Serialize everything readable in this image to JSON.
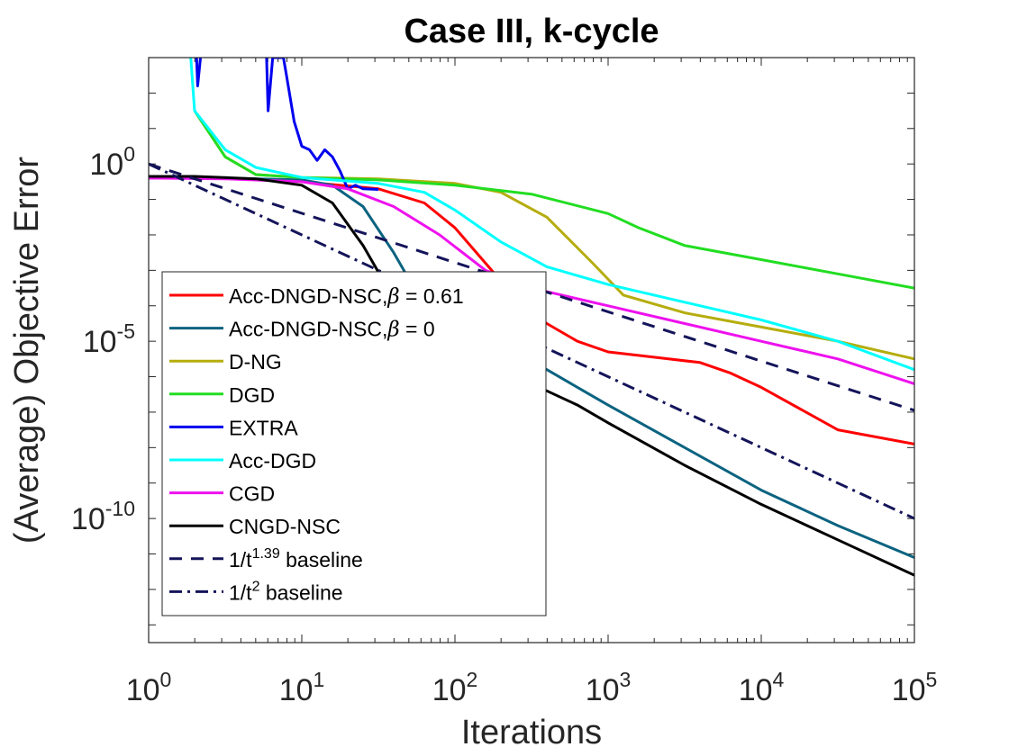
{
  "chart_data": {
    "type": "line",
    "title": "Case III, k-cycle",
    "xlabel": "Iterations",
    "ylabel": "(Average) Objective Error",
    "xscale": "log",
    "yscale": "log",
    "xlim_exp": [
      0,
      5
    ],
    "ylim_exp": [
      -13.5,
      3.0
    ],
    "x_ticks": [
      {
        "base": "10",
        "exp": "0",
        "value_exp": 0
      },
      {
        "base": "10",
        "exp": "1",
        "value_exp": 1
      },
      {
        "base": "10",
        "exp": "2",
        "value_exp": 2
      },
      {
        "base": "10",
        "exp": "3",
        "value_exp": 3
      },
      {
        "base": "10",
        "exp": "4",
        "value_exp": 4
      },
      {
        "base": "10",
        "exp": "5",
        "value_exp": 5
      }
    ],
    "y_ticks": [
      {
        "base": "10",
        "exp": "0",
        "value_exp": 0
      },
      {
        "base": "10",
        "exp": "-5",
        "value_exp": -5
      },
      {
        "base": "10",
        "exp": "-10",
        "value_exp": -10
      }
    ],
    "legend_position": "bottom-left",
    "note": "points are [log10(iterations), log10(error)]",
    "series": [
      {
        "name": "Acc-DNGD-NSC,β = 0.61",
        "legend": {
          "main": "Acc-DNGD-NSC,",
          "greek": "β",
          "rest": " = 0.61"
        },
        "color": "#ff0000",
        "dash": "solid",
        "points": [
          [
            0,
            -0.4
          ],
          [
            0.5,
            -0.4
          ],
          [
            1,
            -0.5
          ],
          [
            1.5,
            -0.7
          ],
          [
            1.8,
            -1.1
          ],
          [
            2,
            -1.8
          ],
          [
            2.2,
            -2.8
          ],
          [
            2.4,
            -3.8
          ],
          [
            2.6,
            -4.5
          ],
          [
            2.8,
            -5.0
          ],
          [
            3.0,
            -5.3
          ],
          [
            3.3,
            -5.45
          ],
          [
            3.6,
            -5.6
          ],
          [
            3.8,
            -5.9
          ],
          [
            4.0,
            -6.3
          ],
          [
            4.5,
            -7.5
          ],
          [
            5,
            -7.9
          ]
        ]
      },
      {
        "name": "Acc-DNGD-NSC,β = 0",
        "legend": {
          "main": "Acc-DNGD-NSC,",
          "greek": "β",
          "rest": " = 0"
        },
        "color": "#0b6380",
        "dash": "solid",
        "points": [
          [
            0,
            -0.4
          ],
          [
            0.5,
            -0.4
          ],
          [
            1,
            -0.45
          ],
          [
            1.2,
            -0.6
          ],
          [
            1.4,
            -1.2
          ],
          [
            1.6,
            -2.5
          ],
          [
            1.8,
            -4.0
          ],
          [
            2.0,
            -4.8
          ],
          [
            2.2,
            -5.2
          ],
          [
            2.4,
            -5.5
          ],
          [
            2.6,
            -5.8
          ],
          [
            2.8,
            -6.3
          ],
          [
            3.0,
            -6.8
          ],
          [
            3.5,
            -8.0
          ],
          [
            4.0,
            -9.2
          ],
          [
            4.5,
            -10.2
          ],
          [
            5,
            -11.1
          ]
        ]
      },
      {
        "name": "D-NG",
        "legend": {
          "main": "D-NG"
        },
        "color": "#b5ad0e",
        "dash": "solid",
        "points": [
          [
            0.3,
            1.5
          ],
          [
            0.5,
            0.2
          ],
          [
            0.7,
            -0.3
          ],
          [
            1.0,
            -0.38
          ],
          [
            1.5,
            -0.42
          ],
          [
            2.0,
            -0.55
          ],
          [
            2.3,
            -0.8
          ],
          [
            2.6,
            -1.5
          ],
          [
            2.9,
            -2.8
          ],
          [
            3.1,
            -3.7
          ],
          [
            3.5,
            -4.2
          ],
          [
            4.0,
            -4.6
          ],
          [
            4.5,
            -5.0
          ],
          [
            5.0,
            -5.5
          ]
        ]
      },
      {
        "name": "DGD",
        "legend": {
          "main": "DGD"
        },
        "color": "#22dd22",
        "dash": "solid",
        "points": [
          [
            0.3,
            1.5
          ],
          [
            0.5,
            0.2
          ],
          [
            0.7,
            -0.3
          ],
          [
            1.0,
            -0.38
          ],
          [
            1.5,
            -0.45
          ],
          [
            2.0,
            -0.6
          ],
          [
            2.5,
            -0.85
          ],
          [
            3.0,
            -1.4
          ],
          [
            3.2,
            -1.8
          ],
          [
            3.5,
            -2.3
          ],
          [
            4.0,
            -2.7
          ],
          [
            4.5,
            -3.1
          ],
          [
            5.0,
            -3.5
          ]
        ]
      },
      {
        "name": "EXTRA",
        "legend": {
          "main": "EXTRA"
        },
        "color": "#0000ee",
        "dash": "solid",
        "points": [
          [
            0.3,
            4.5
          ],
          [
            0.32,
            2.2
          ],
          [
            0.35,
            3.5
          ],
          [
            0.4,
            4.5
          ],
          [
            0.76,
            4.5
          ],
          [
            0.78,
            1.5
          ],
          [
            0.81,
            3.0
          ],
          [
            0.84,
            3.0
          ],
          [
            0.88,
            3.0
          ],
          [
            0.9,
            2.5
          ],
          [
            0.95,
            1.2
          ],
          [
            1.0,
            0.5
          ],
          [
            1.05,
            0.4
          ],
          [
            1.1,
            0.1
          ],
          [
            1.15,
            0.4
          ],
          [
            1.2,
            0.2
          ],
          [
            1.25,
            -0.2
          ],
          [
            1.3,
            -0.7
          ],
          [
            1.35,
            -0.6
          ],
          [
            1.4,
            -0.7
          ],
          [
            1.5,
            -0.72
          ]
        ]
      },
      {
        "name": "Acc-DGD",
        "legend": {
          "main": "Acc-DGD"
        },
        "color": "#00ffff",
        "dash": "solid",
        "points": [
          [
            0.25,
            4.5
          ],
          [
            0.3,
            1.5
          ],
          [
            0.5,
            0.4
          ],
          [
            0.7,
            -0.1
          ],
          [
            1.0,
            -0.38
          ],
          [
            1.5,
            -0.55
          ],
          [
            1.8,
            -0.8
          ],
          [
            2.0,
            -1.3
          ],
          [
            2.3,
            -2.2
          ],
          [
            2.6,
            -2.9
          ],
          [
            3.0,
            -3.4
          ],
          [
            3.5,
            -3.9
          ],
          [
            4.0,
            -4.4
          ],
          [
            4.5,
            -5.0
          ],
          [
            5.0,
            -5.8
          ]
        ]
      },
      {
        "name": "CGD",
        "legend": {
          "main": "CGD"
        },
        "color": "#ee11ee",
        "dash": "solid",
        "points": [
          [
            0,
            -0.4
          ],
          [
            0.5,
            -0.42
          ],
          [
            1.0,
            -0.5
          ],
          [
            1.3,
            -0.7
          ],
          [
            1.6,
            -1.2
          ],
          [
            1.9,
            -2.0
          ],
          [
            2.2,
            -3.0
          ],
          [
            2.5,
            -3.5
          ],
          [
            3.0,
            -4.0
          ],
          [
            3.5,
            -4.5
          ],
          [
            4.0,
            -5.0
          ],
          [
            4.5,
            -5.5
          ],
          [
            5.0,
            -6.2
          ]
        ]
      },
      {
        "name": "CNGD-NSC",
        "legend": {
          "main": "CNGD-NSC"
        },
        "color": "#000000",
        "dash": "solid",
        "points": [
          [
            0,
            -0.35
          ],
          [
            0.3,
            -0.35
          ],
          [
            0.7,
            -0.42
          ],
          [
            1.0,
            -0.6
          ],
          [
            1.2,
            -1.1
          ],
          [
            1.4,
            -2.3
          ],
          [
            1.6,
            -3.8
          ],
          [
            1.8,
            -5.0
          ],
          [
            2.0,
            -5.5
          ],
          [
            2.2,
            -5.8
          ],
          [
            2.4,
            -6.1
          ],
          [
            2.6,
            -6.4
          ],
          [
            2.8,
            -6.8
          ],
          [
            3.0,
            -7.3
          ],
          [
            3.5,
            -8.5
          ],
          [
            4.0,
            -9.6
          ],
          [
            4.5,
            -10.6
          ],
          [
            5,
            -11.6
          ]
        ]
      },
      {
        "name": "1/t1.39 baseline",
        "legend": {
          "main": "1/t",
          "sup": "1.39",
          "rest": " baseline"
        },
        "color": "#14145a",
        "dash": "dashed",
        "points": [
          [
            0,
            0
          ],
          [
            5,
            -6.95
          ]
        ]
      },
      {
        "name": "1/t2 baseline",
        "legend": {
          "main": "1/t",
          "sup": "2",
          "rest": " baseline"
        },
        "color": "#14145a",
        "dash": "dashdot",
        "points": [
          [
            0,
            0
          ],
          [
            5,
            -10
          ]
        ]
      }
    ]
  }
}
